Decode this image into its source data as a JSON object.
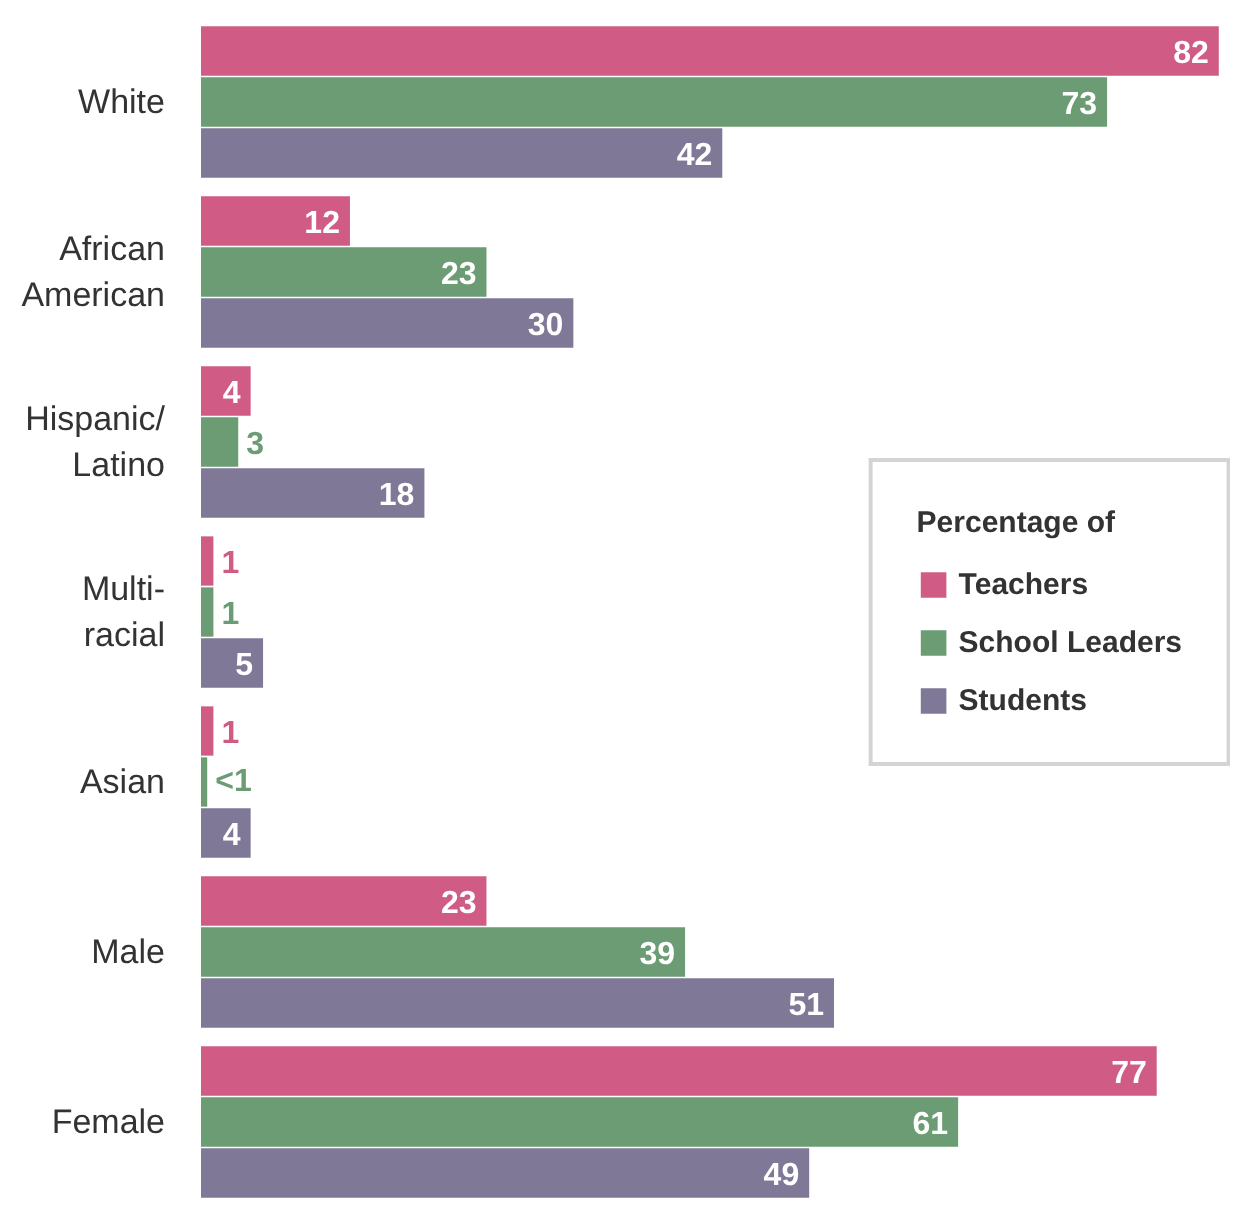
{
  "chart_data": {
    "type": "bar",
    "orientation": "horizontal",
    "categories": [
      "White",
      "African\nAmerican",
      "Hispanic/\nLatino",
      "Multi-\nracial",
      "Asian",
      "Male",
      "Female"
    ],
    "legend_title": "Percentage of",
    "legend": "right",
    "grid": false,
    "data_labels": true,
    "series": [
      {
        "name": "Teachers",
        "color": "#d05c86",
        "values": [
          82,
          12,
          4,
          1,
          1,
          23,
          77
        ]
      },
      {
        "name": "School Leaders",
        "color": "#6b9c73",
        "values": [
          73,
          23,
          3,
          1,
          0.5,
          39,
          61
        ],
        "value_labels": [
          "73",
          "23",
          "3",
          "1",
          "<1",
          "39",
          "61"
        ]
      },
      {
        "name": "Students",
        "color": "#807897",
        "values": [
          42,
          30,
          18,
          5,
          4,
          51,
          49
        ]
      }
    ]
  }
}
